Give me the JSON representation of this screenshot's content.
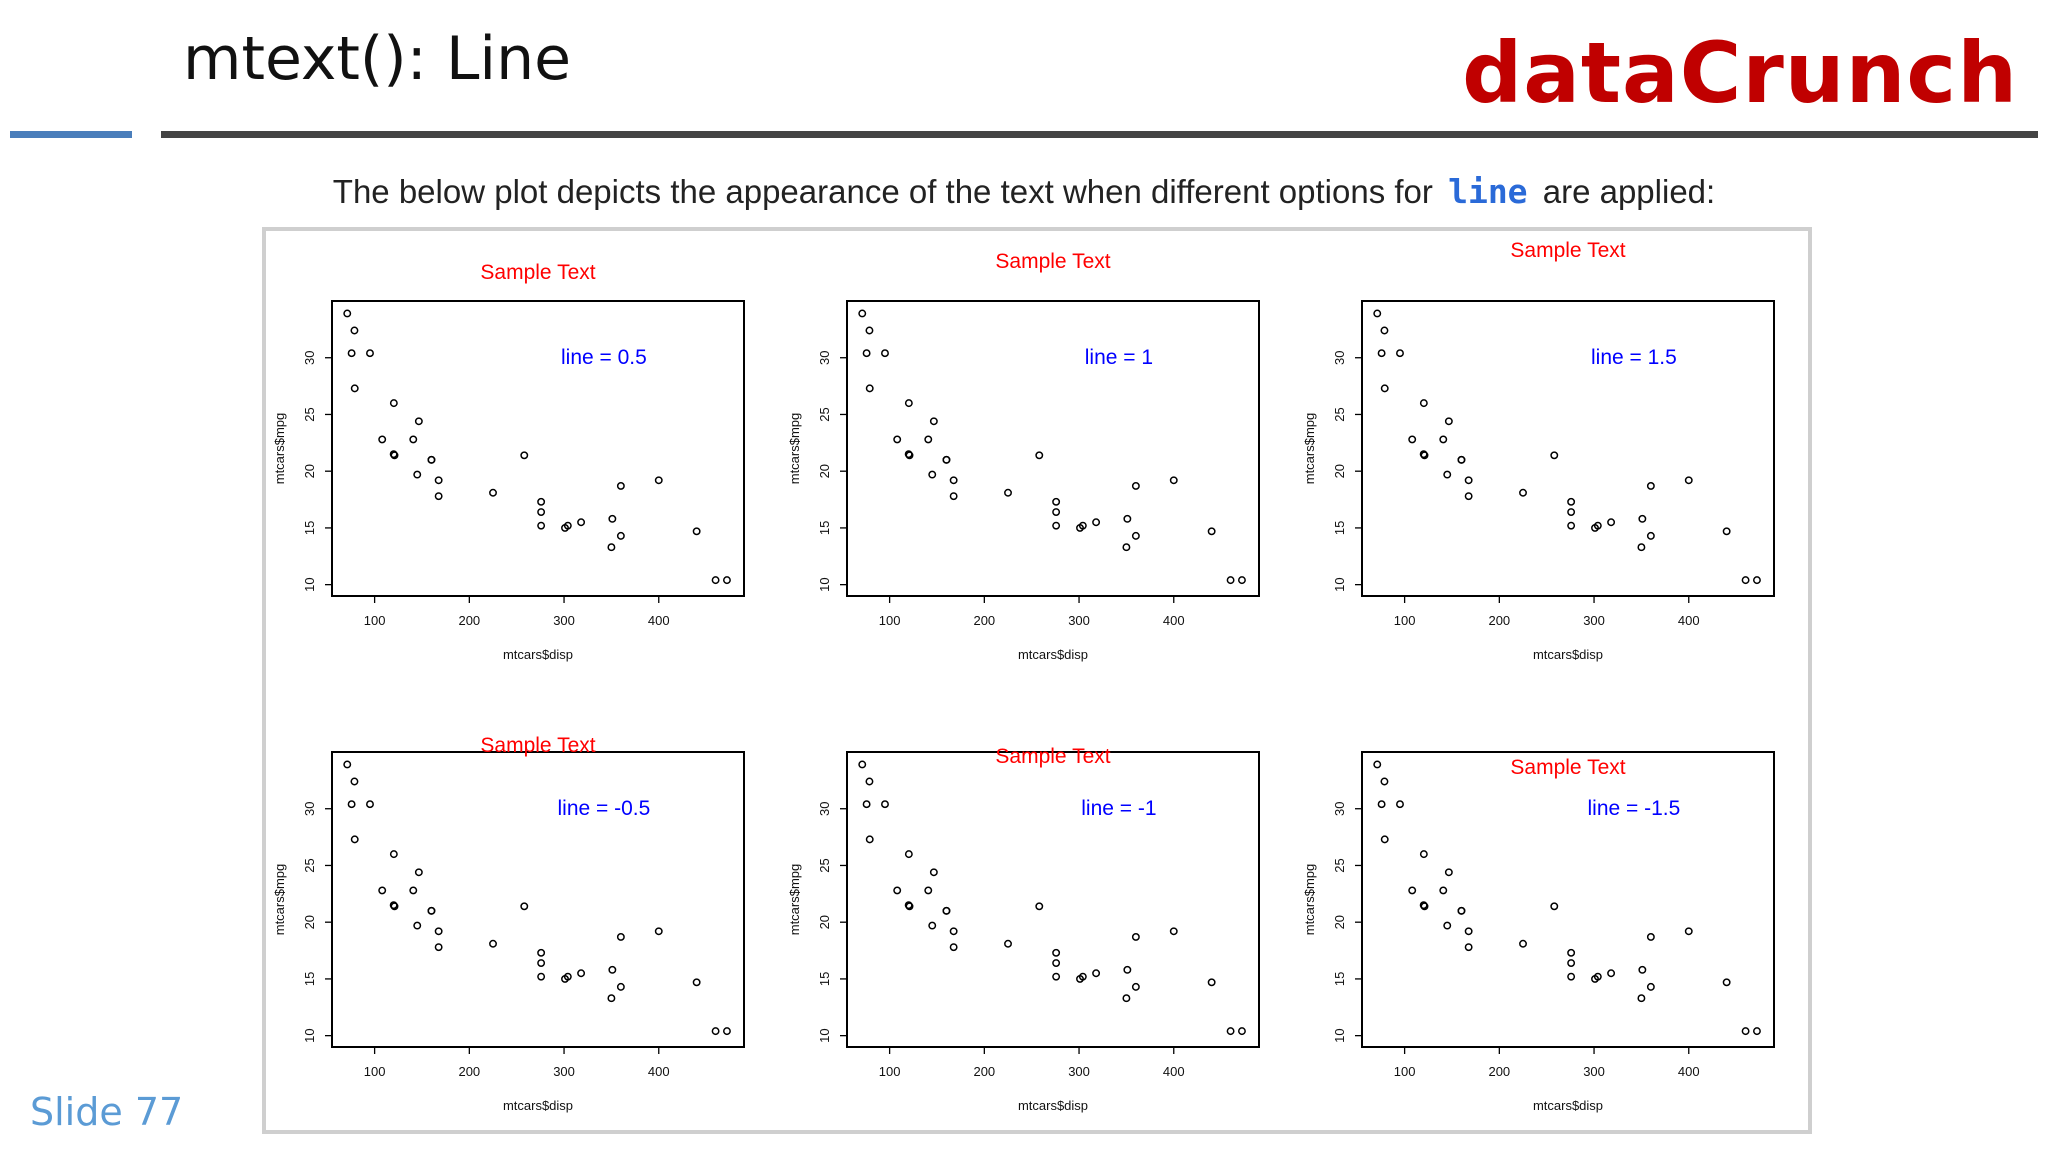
{
  "slide": {
    "title": "mtext(): Line",
    "brand": "dataCrunch",
    "subtitle_before": "The below plot depicts the appearance of the text when different options for",
    "subtitle_code": "line",
    "subtitle_after": "are applied:",
    "slide_number": "Slide 77"
  },
  "colors": {
    "brand": "#c00000",
    "accent_blue": "#4a7ebb",
    "mtext": "#ff0000",
    "legend_text": "#0000ff",
    "code": "#2a6ad8"
  },
  "chart_data": [
    {
      "type": "scatter",
      "mtext": "Sample Text",
      "annotation": "line = 0.5",
      "line": 0.5,
      "xlabel": "mtcars$disp",
      "ylabel": "mtcars$mpg",
      "xlim": [
        55,
        490
      ],
      "ylim": [
        9,
        35
      ],
      "xticks": [
        "100",
        "200",
        "300",
        "400"
      ],
      "yticks": [
        "10",
        "15",
        "20",
        "25",
        "30"
      ],
      "points": [
        [
          160,
          21
        ],
        [
          160,
          21
        ],
        [
          108,
          22.8
        ],
        [
          258,
          21.4
        ],
        [
          360,
          18.7
        ],
        [
          225,
          18.1
        ],
        [
          360,
          14.3
        ],
        [
          146.7,
          24.4
        ],
        [
          140.8,
          22.8
        ],
        [
          167.6,
          19.2
        ],
        [
          167.6,
          17.8
        ],
        [
          275.8,
          16.4
        ],
        [
          275.8,
          17.3
        ],
        [
          275.8,
          15.2
        ],
        [
          472,
          10.4
        ],
        [
          460,
          10.4
        ],
        [
          440,
          14.7
        ],
        [
          78.7,
          32.4
        ],
        [
          75.7,
          30.4
        ],
        [
          71.1,
          33.9
        ],
        [
          120.1,
          21.5
        ],
        [
          318,
          15.5
        ],
        [
          304,
          15.2
        ],
        [
          350,
          13.3
        ],
        [
          400,
          19.2
        ],
        [
          79,
          27.3
        ],
        [
          120.3,
          26
        ],
        [
          95.1,
          30.4
        ],
        [
          351,
          15.8
        ],
        [
          145,
          19.7
        ],
        [
          301,
          15
        ],
        [
          121,
          21.4
        ]
      ]
    },
    {
      "type": "scatter",
      "mtext": "Sample Text",
      "annotation": "line = 1",
      "line": 1,
      "xlabel": "mtcars$disp",
      "ylabel": "mtcars$mpg",
      "xlim": [
        55,
        490
      ],
      "ylim": [
        9,
        35
      ],
      "xticks": [
        "100",
        "200",
        "300",
        "400"
      ],
      "yticks": [
        "10",
        "15",
        "20",
        "25",
        "30"
      ],
      "points": [
        [
          160,
          21
        ],
        [
          160,
          21
        ],
        [
          108,
          22.8
        ],
        [
          258,
          21.4
        ],
        [
          360,
          18.7
        ],
        [
          225,
          18.1
        ],
        [
          360,
          14.3
        ],
        [
          146.7,
          24.4
        ],
        [
          140.8,
          22.8
        ],
        [
          167.6,
          19.2
        ],
        [
          167.6,
          17.8
        ],
        [
          275.8,
          16.4
        ],
        [
          275.8,
          17.3
        ],
        [
          275.8,
          15.2
        ],
        [
          472,
          10.4
        ],
        [
          460,
          10.4
        ],
        [
          440,
          14.7
        ],
        [
          78.7,
          32.4
        ],
        [
          75.7,
          30.4
        ],
        [
          71.1,
          33.9
        ],
        [
          120.1,
          21.5
        ],
        [
          318,
          15.5
        ],
        [
          304,
          15.2
        ],
        [
          350,
          13.3
        ],
        [
          400,
          19.2
        ],
        [
          79,
          27.3
        ],
        [
          120.3,
          26
        ],
        [
          95.1,
          30.4
        ],
        [
          351,
          15.8
        ],
        [
          145,
          19.7
        ],
        [
          301,
          15
        ],
        [
          121,
          21.4
        ]
      ]
    },
    {
      "type": "scatter",
      "mtext": "Sample Text",
      "annotation": "line = 1.5",
      "line": 1.5,
      "xlabel": "mtcars$disp",
      "ylabel": "mtcars$mpg",
      "xlim": [
        55,
        490
      ],
      "ylim": [
        9,
        35
      ],
      "xticks": [
        "100",
        "200",
        "300",
        "400"
      ],
      "yticks": [
        "10",
        "15",
        "20",
        "25",
        "30"
      ],
      "points": [
        [
          160,
          21
        ],
        [
          160,
          21
        ],
        [
          108,
          22.8
        ],
        [
          258,
          21.4
        ],
        [
          360,
          18.7
        ],
        [
          225,
          18.1
        ],
        [
          360,
          14.3
        ],
        [
          146.7,
          24.4
        ],
        [
          140.8,
          22.8
        ],
        [
          167.6,
          19.2
        ],
        [
          167.6,
          17.8
        ],
        [
          275.8,
          16.4
        ],
        [
          275.8,
          17.3
        ],
        [
          275.8,
          15.2
        ],
        [
          472,
          10.4
        ],
        [
          460,
          10.4
        ],
        [
          440,
          14.7
        ],
        [
          78.7,
          32.4
        ],
        [
          75.7,
          30.4
        ],
        [
          71.1,
          33.9
        ],
        [
          120.1,
          21.5
        ],
        [
          318,
          15.5
        ],
        [
          304,
          15.2
        ],
        [
          350,
          13.3
        ],
        [
          400,
          19.2
        ],
        [
          79,
          27.3
        ],
        [
          120.3,
          26
        ],
        [
          95.1,
          30.4
        ],
        [
          351,
          15.8
        ],
        [
          145,
          19.7
        ],
        [
          301,
          15
        ],
        [
          121,
          21.4
        ]
      ]
    },
    {
      "type": "scatter",
      "mtext": "Sample Text",
      "annotation": "line = -0.5",
      "line": -0.5,
      "xlabel": "mtcars$disp",
      "ylabel": "mtcars$mpg",
      "xlim": [
        55,
        490
      ],
      "ylim": [
        9,
        35
      ],
      "xticks": [
        "100",
        "200",
        "300",
        "400"
      ],
      "yticks": [
        "10",
        "15",
        "20",
        "25",
        "30"
      ],
      "points": [
        [
          160,
          21
        ],
        [
          160,
          21
        ],
        [
          108,
          22.8
        ],
        [
          258,
          21.4
        ],
        [
          360,
          18.7
        ],
        [
          225,
          18.1
        ],
        [
          360,
          14.3
        ],
        [
          146.7,
          24.4
        ],
        [
          140.8,
          22.8
        ],
        [
          167.6,
          19.2
        ],
        [
          167.6,
          17.8
        ],
        [
          275.8,
          16.4
        ],
        [
          275.8,
          17.3
        ],
        [
          275.8,
          15.2
        ],
        [
          472,
          10.4
        ],
        [
          460,
          10.4
        ],
        [
          440,
          14.7
        ],
        [
          78.7,
          32.4
        ],
        [
          75.7,
          30.4
        ],
        [
          71.1,
          33.9
        ],
        [
          120.1,
          21.5
        ],
        [
          318,
          15.5
        ],
        [
          304,
          15.2
        ],
        [
          350,
          13.3
        ],
        [
          400,
          19.2
        ],
        [
          79,
          27.3
        ],
        [
          120.3,
          26
        ],
        [
          95.1,
          30.4
        ],
        [
          351,
          15.8
        ],
        [
          145,
          19.7
        ],
        [
          301,
          15
        ],
        [
          121,
          21.4
        ]
      ]
    },
    {
      "type": "scatter",
      "mtext": "Sample Text",
      "annotation": "line = -1",
      "line": -1,
      "xlabel": "mtcars$disp",
      "ylabel": "mtcars$mpg",
      "xlim": [
        55,
        490
      ],
      "ylim": [
        9,
        35
      ],
      "xticks": [
        "100",
        "200",
        "300",
        "400"
      ],
      "yticks": [
        "10",
        "15",
        "20",
        "25",
        "30"
      ],
      "points": [
        [
          160,
          21
        ],
        [
          160,
          21
        ],
        [
          108,
          22.8
        ],
        [
          258,
          21.4
        ],
        [
          360,
          18.7
        ],
        [
          225,
          18.1
        ],
        [
          360,
          14.3
        ],
        [
          146.7,
          24.4
        ],
        [
          140.8,
          22.8
        ],
        [
          167.6,
          19.2
        ],
        [
          167.6,
          17.8
        ],
        [
          275.8,
          16.4
        ],
        [
          275.8,
          17.3
        ],
        [
          275.8,
          15.2
        ],
        [
          472,
          10.4
        ],
        [
          460,
          10.4
        ],
        [
          440,
          14.7
        ],
        [
          78.7,
          32.4
        ],
        [
          75.7,
          30.4
        ],
        [
          71.1,
          33.9
        ],
        [
          120.1,
          21.5
        ],
        [
          318,
          15.5
        ],
        [
          304,
          15.2
        ],
        [
          350,
          13.3
        ],
        [
          400,
          19.2
        ],
        [
          79,
          27.3
        ],
        [
          120.3,
          26
        ],
        [
          95.1,
          30.4
        ],
        [
          351,
          15.8
        ],
        [
          145,
          19.7
        ],
        [
          301,
          15
        ],
        [
          121,
          21.4
        ]
      ]
    },
    {
      "type": "scatter",
      "mtext": "Sample Text",
      "annotation": "line = -1.5",
      "line": -1.5,
      "xlabel": "mtcars$disp",
      "ylabel": "mtcars$mpg",
      "xlim": [
        55,
        490
      ],
      "ylim": [
        9,
        35
      ],
      "xticks": [
        "100",
        "200",
        "300",
        "400"
      ],
      "yticks": [
        "10",
        "15",
        "20",
        "25",
        "30"
      ],
      "points": [
        [
          160,
          21
        ],
        [
          160,
          21
        ],
        [
          108,
          22.8
        ],
        [
          258,
          21.4
        ],
        [
          360,
          18.7
        ],
        [
          225,
          18.1
        ],
        [
          360,
          14.3
        ],
        [
          146.7,
          24.4
        ],
        [
          140.8,
          22.8
        ],
        [
          167.6,
          19.2
        ],
        [
          167.6,
          17.8
        ],
        [
          275.8,
          16.4
        ],
        [
          275.8,
          17.3
        ],
        [
          275.8,
          15.2
        ],
        [
          472,
          10.4
        ],
        [
          460,
          10.4
        ],
        [
          440,
          14.7
        ],
        [
          78.7,
          32.4
        ],
        [
          75.7,
          30.4
        ],
        [
          71.1,
          33.9
        ],
        [
          120.1,
          21.5
        ],
        [
          318,
          15.5
        ],
        [
          304,
          15.2
        ],
        [
          350,
          13.3
        ],
        [
          400,
          19.2
        ],
        [
          79,
          27.3
        ],
        [
          120.3,
          26
        ],
        [
          95.1,
          30.4
        ],
        [
          351,
          15.8
        ],
        [
          145,
          19.7
        ],
        [
          301,
          15
        ],
        [
          121,
          21.4
        ]
      ]
    }
  ]
}
